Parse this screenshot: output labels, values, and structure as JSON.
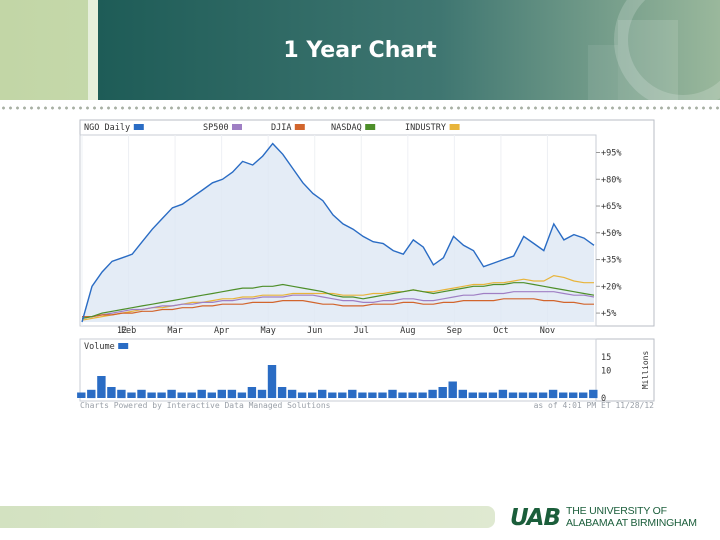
{
  "slide": {
    "title": "1 Year Chart",
    "logo_mark": "UAB",
    "logo_line1": "THE UNIVERSITY OF",
    "logo_line2": "ALABAMA AT BIRMINGHAM",
    "accent_green": "#1b5e3b"
  },
  "chart_data": [
    {
      "type": "line",
      "legend": [
        {
          "label": "NGO Daily",
          "color": "#2a6cc4"
        },
        {
          "label": "SP500",
          "color": "#9f7fc4"
        },
        {
          "label": "DJIA",
          "color": "#d2652d"
        },
        {
          "label": "NASDAQ",
          "color": "#4e8f2a"
        },
        {
          "label": "INDUSTRY",
          "color": "#e8b43a"
        }
      ],
      "x_tick_labels": [
        "12",
        "Feb",
        "Mar",
        "Apr",
        "May",
        "Jun",
        "Jul",
        "Aug",
        "Sep",
        "Oct",
        "Nov"
      ],
      "y_tick_labels": [
        "+5%",
        "+20%",
        "+35%",
        "+50%",
        "+65%",
        "+80%",
        "+95%"
      ],
      "y_ticks": [
        5,
        20,
        35,
        50,
        65,
        80,
        95
      ],
      "ylim": [
        0,
        102
      ],
      "x_range": [
        1,
        52
      ],
      "grid": "vertical",
      "legend_position": "top",
      "series": [
        {
          "name": "NGO Daily",
          "color": "#2a6cc4",
          "x": [
            1,
            2,
            3,
            4,
            5,
            6,
            7,
            8,
            9,
            10,
            11,
            12,
            13,
            14,
            15,
            16,
            17,
            18,
            19,
            20,
            21,
            22,
            23,
            24,
            25,
            26,
            27,
            28,
            29,
            30,
            31,
            32,
            33,
            34,
            35,
            36,
            37,
            38,
            39,
            40,
            41,
            42,
            43,
            44,
            45,
            46,
            47,
            48,
            49,
            50,
            51,
            52
          ],
          "values": [
            0,
            20,
            28,
            34,
            36,
            38,
            45,
            52,
            58,
            64,
            66,
            70,
            74,
            78,
            80,
            84,
            90,
            88,
            93,
            100,
            94,
            86,
            78,
            72,
            68,
            60,
            55,
            52,
            48,
            45,
            44,
            40,
            38,
            46,
            42,
            32,
            36,
            48,
            43,
            40,
            31,
            33,
            35,
            37,
            48,
            44,
            40,
            55,
            46,
            49,
            47,
            43
          ]
        },
        {
          "name": "SP500",
          "color": "#9f7fc4",
          "x": [
            1,
            2,
            3,
            4,
            5,
            6,
            7,
            8,
            9,
            10,
            11,
            12,
            13,
            14,
            15,
            16,
            17,
            18,
            19,
            20,
            21,
            22,
            23,
            24,
            25,
            26,
            27,
            28,
            29,
            30,
            31,
            32,
            33,
            34,
            35,
            36,
            37,
            38,
            39,
            40,
            41,
            42,
            43,
            44,
            45,
            46,
            47,
            48,
            49,
            50,
            51,
            52
          ],
          "values": [
            2,
            3,
            4,
            5,
            6,
            7,
            7,
            8,
            9,
            9,
            10,
            10,
            11,
            11,
            12,
            12,
            13,
            13,
            14,
            14,
            14,
            15,
            15,
            15,
            14,
            13,
            12,
            12,
            11,
            11,
            12,
            12,
            13,
            13,
            12,
            12,
            13,
            14,
            15,
            15,
            16,
            16,
            16,
            17,
            17,
            17,
            17,
            17,
            16,
            15,
            15,
            14
          ]
        },
        {
          "name": "DJIA",
          "color": "#d2652d",
          "x": [
            1,
            2,
            3,
            4,
            5,
            6,
            7,
            8,
            9,
            10,
            11,
            12,
            13,
            14,
            15,
            16,
            17,
            18,
            19,
            20,
            21,
            22,
            23,
            24,
            25,
            26,
            27,
            28,
            29,
            30,
            31,
            32,
            33,
            34,
            35,
            36,
            37,
            38,
            39,
            40,
            41,
            42,
            43,
            44,
            45,
            46,
            47,
            48,
            49,
            50,
            51,
            52
          ],
          "values": [
            3,
            3,
            4,
            4,
            5,
            5,
            6,
            6,
            7,
            7,
            8,
            8,
            9,
            9,
            10,
            10,
            10,
            11,
            11,
            11,
            12,
            12,
            12,
            11,
            10,
            10,
            9,
            9,
            9,
            10,
            10,
            10,
            11,
            11,
            10,
            10,
            11,
            11,
            12,
            12,
            12,
            12,
            13,
            13,
            13,
            13,
            12,
            12,
            11,
            11,
            10,
            10
          ]
        },
        {
          "name": "NASDAQ",
          "color": "#4e8f2a",
          "x": [
            1,
            2,
            3,
            4,
            5,
            6,
            7,
            8,
            9,
            10,
            11,
            12,
            13,
            14,
            15,
            16,
            17,
            18,
            19,
            20,
            21,
            22,
            23,
            24,
            25,
            26,
            27,
            28,
            29,
            30,
            31,
            32,
            33,
            34,
            35,
            36,
            37,
            38,
            39,
            40,
            41,
            42,
            43,
            44,
            45,
            46,
            47,
            48,
            49,
            50,
            51,
            52
          ],
          "values": [
            2,
            3,
            5,
            6,
            7,
            8,
            9,
            10,
            11,
            12,
            13,
            14,
            15,
            16,
            17,
            18,
            19,
            19,
            20,
            20,
            21,
            20,
            19,
            18,
            17,
            15,
            14,
            14,
            13,
            14,
            15,
            16,
            17,
            18,
            17,
            16,
            17,
            18,
            19,
            20,
            20,
            21,
            21,
            22,
            22,
            21,
            20,
            19,
            18,
            17,
            16,
            15
          ]
        },
        {
          "name": "INDUSTRY",
          "color": "#e8b43a",
          "x": [
            1,
            2,
            3,
            4,
            5,
            6,
            7,
            8,
            9,
            10,
            11,
            12,
            13,
            14,
            15,
            16,
            17,
            18,
            19,
            20,
            21,
            22,
            23,
            24,
            25,
            26,
            27,
            28,
            29,
            30,
            31,
            32,
            33,
            34,
            35,
            36,
            37,
            38,
            39,
            40,
            41,
            42,
            43,
            44,
            45,
            46,
            47,
            48,
            49,
            50,
            51,
            52
          ],
          "values": [
            1,
            2,
            3,
            4,
            5,
            6,
            7,
            8,
            8,
            9,
            10,
            11,
            11,
            12,
            13,
            13,
            14,
            14,
            15,
            15,
            15,
            16,
            16,
            16,
            16,
            16,
            15,
            15,
            15,
            16,
            16,
            17,
            17,
            18,
            17,
            17,
            18,
            19,
            20,
            21,
            21,
            22,
            22,
            23,
            24,
            23,
            23,
            26,
            25,
            23,
            22,
            22
          ]
        }
      ]
    },
    {
      "type": "bar",
      "legend": [
        {
          "label": "Volume",
          "color": "#2a6cc4"
        }
      ],
      "y_tick_labels": [
        "0",
        "10",
        "15"
      ],
      "y_ticks": [
        0,
        10,
        15
      ],
      "ylabel": "Millions",
      "ylim": [
        0,
        20
      ],
      "x_range": [
        1,
        52
      ],
      "values": [
        2,
        3,
        8,
        4,
        3,
        2,
        3,
        2,
        2,
        3,
        2,
        2,
        3,
        2,
        3,
        3,
        2,
        4,
        3,
        12,
        4,
        3,
        2,
        2,
        3,
        2,
        2,
        3,
        2,
        2,
        2,
        3,
        2,
        2,
        2,
        3,
        4,
        6,
        3,
        2,
        2,
        2,
        3,
        2,
        2,
        2,
        2,
        3,
        2,
        2,
        2,
        3
      ]
    }
  ],
  "credits": {
    "left": "Charts Powered by Interactive Data Managed Solutions",
    "right": "as of 4:01 PM ET 11/28/12"
  }
}
